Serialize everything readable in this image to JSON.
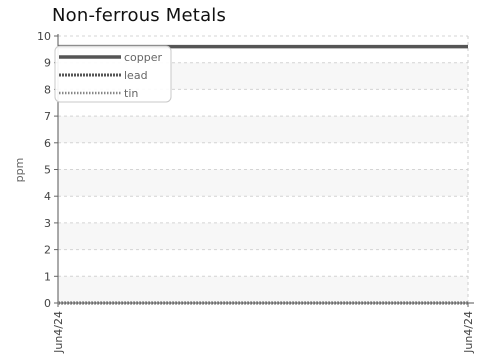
{
  "chart_data": {
    "type": "line",
    "title": "Non-ferrous Metals",
    "xlabel": "",
    "ylabel": "ppm",
    "x": [
      "Jun4/24",
      "Jun4/24"
    ],
    "ylim": [
      0,
      10
    ],
    "yticks": [
      "0",
      "1",
      "2",
      "3",
      "4",
      "5",
      "6",
      "7",
      "8",
      "9",
      "10"
    ],
    "grid": true,
    "legend_position": "top-left",
    "series": [
      {
        "name": "copper",
        "values": [
          9.6,
          9.6
        ],
        "color": "#555555",
        "style": "solid"
      },
      {
        "name": "lead",
        "values": [
          0,
          0
        ],
        "color": "#555555",
        "style": "dashed"
      },
      {
        "name": "tin",
        "values": [
          0,
          0
        ],
        "color": "#888888",
        "style": "dotted"
      }
    ]
  }
}
